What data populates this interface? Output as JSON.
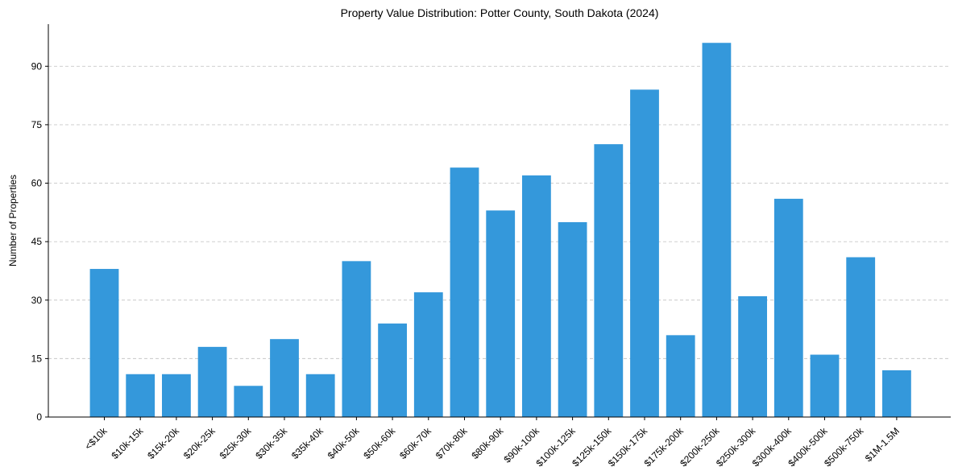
{
  "chart_data": {
    "type": "bar",
    "title": "Property Value Distribution: Potter County, South Dakota (2024)",
    "xlabel": "",
    "ylabel": "Number of Properties",
    "categories": [
      "<$10k",
      "$10k-15k",
      "$15k-20k",
      "$20k-25k",
      "$25k-30k",
      "$30k-35k",
      "$35k-40k",
      "$40k-50k",
      "$50k-60k",
      "$60k-70k",
      "$70k-80k",
      "$80k-90k",
      "$90k-100k",
      "$100k-125k",
      "$125k-150k",
      "$150k-175k",
      "$175k-200k",
      "$200k-250k",
      "$250k-300k",
      "$300k-400k",
      "$400k-500k",
      "$500k-750k",
      "$1M-1.5M"
    ],
    "values": [
      38,
      11,
      11,
      18,
      8,
      20,
      11,
      40,
      24,
      32,
      64,
      53,
      62,
      50,
      70,
      84,
      21,
      96,
      31,
      56,
      16,
      41,
      12
    ],
    "ylim": [
      0,
      100.8
    ],
    "yticks": [
      0,
      15,
      30,
      45,
      60,
      75,
      90
    ],
    "grid": "y-dashed",
    "bar_color": "#3498db"
  }
}
